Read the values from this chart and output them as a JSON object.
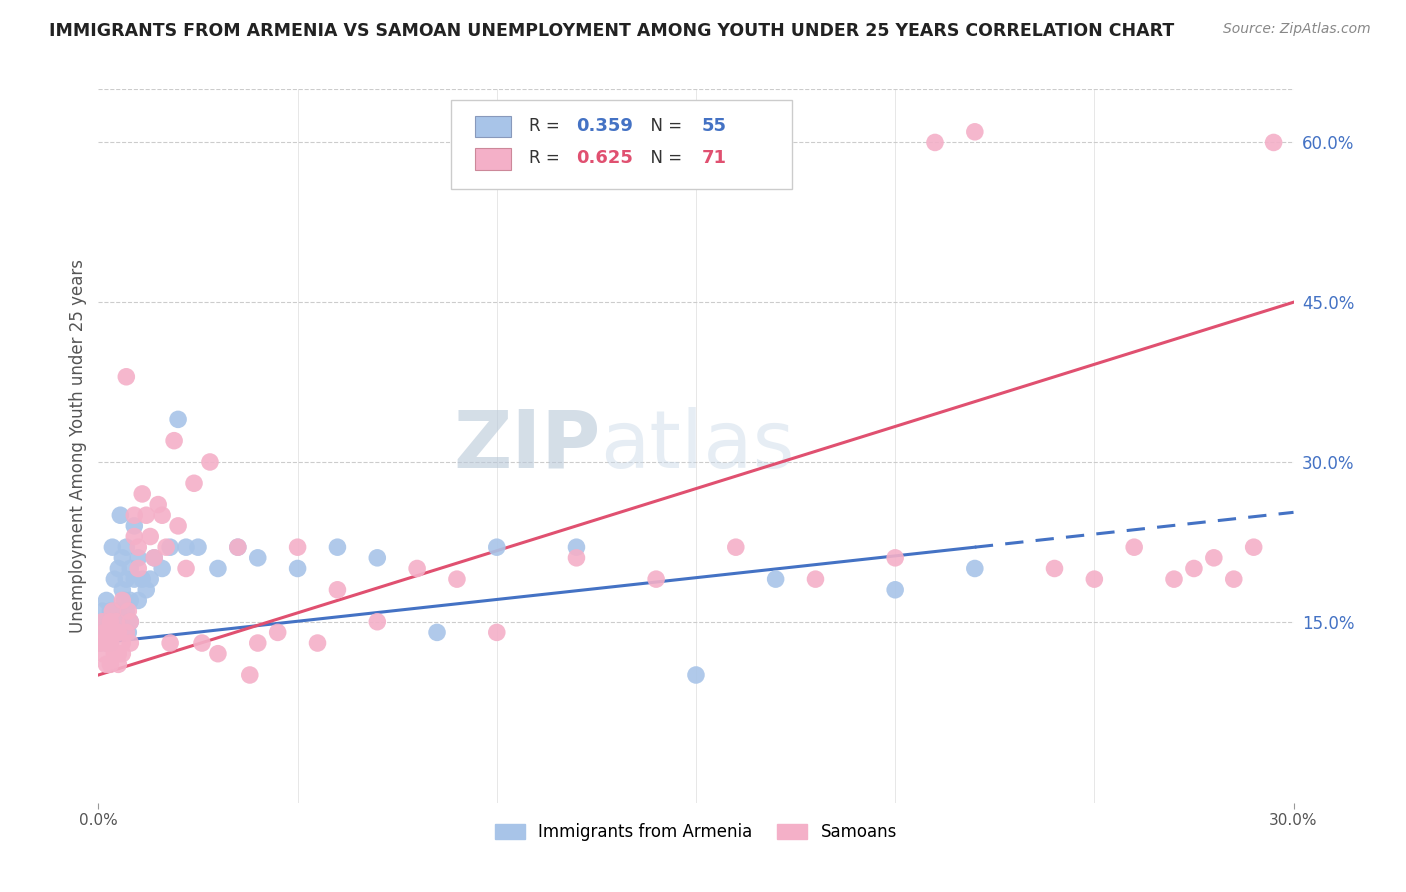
{
  "title": "IMMIGRANTS FROM ARMENIA VS SAMOAN UNEMPLOYMENT AMONG YOUTH UNDER 25 YEARS CORRELATION CHART",
  "source": "Source: ZipAtlas.com",
  "ylabel": "Unemployment Among Youth under 25 years",
  "legend_label1": "Immigrants from Armenia",
  "legend_label2": "Samoans",
  "r1": "0.359",
  "n1": "55",
  "r2": "0.625",
  "n2": "71",
  "color1": "#a8c4e8",
  "color2": "#f4b0c8",
  "trendline1_color": "#4472c4",
  "trendline2_color": "#e05070",
  "watermark_zip": "ZIP",
  "watermark_atlas": "atlas",
  "xmin": 0.0,
  "xmax": 0.3,
  "ymin": -0.02,
  "ymax": 0.65,
  "right_ytick_vals": [
    0.15,
    0.3,
    0.45,
    0.6
  ],
  "right_ytick_labels": [
    "15.0%",
    "30.0%",
    "45.0%",
    "60.0%"
  ],
  "armenia_x": [
    0.0005,
    0.001,
    0.001,
    0.0015,
    0.002,
    0.002,
    0.0025,
    0.003,
    0.003,
    0.003,
    0.0035,
    0.004,
    0.004,
    0.0045,
    0.005,
    0.005,
    0.005,
    0.0055,
    0.006,
    0.006,
    0.006,
    0.0065,
    0.007,
    0.007,
    0.007,
    0.0075,
    0.008,
    0.008,
    0.008,
    0.009,
    0.009,
    0.01,
    0.01,
    0.011,
    0.012,
    0.013,
    0.014,
    0.016,
    0.018,
    0.02,
    0.022,
    0.025,
    0.03,
    0.035,
    0.04,
    0.05,
    0.06,
    0.07,
    0.085,
    0.1,
    0.12,
    0.15,
    0.17,
    0.2,
    0.22
  ],
  "armenia_y": [
    0.13,
    0.16,
    0.14,
    0.15,
    0.13,
    0.17,
    0.14,
    0.15,
    0.13,
    0.16,
    0.22,
    0.14,
    0.19,
    0.16,
    0.2,
    0.16,
    0.14,
    0.25,
    0.18,
    0.15,
    0.21,
    0.17,
    0.22,
    0.19,
    0.16,
    0.14,
    0.2,
    0.17,
    0.15,
    0.19,
    0.24,
    0.21,
    0.17,
    0.19,
    0.18,
    0.19,
    0.21,
    0.2,
    0.22,
    0.34,
    0.22,
    0.22,
    0.2,
    0.22,
    0.21,
    0.2,
    0.22,
    0.21,
    0.14,
    0.22,
    0.22,
    0.1,
    0.19,
    0.18,
    0.2
  ],
  "samoan_x": [
    0.0005,
    0.001,
    0.001,
    0.0015,
    0.002,
    0.002,
    0.0025,
    0.003,
    0.003,
    0.003,
    0.0035,
    0.004,
    0.004,
    0.0045,
    0.005,
    0.005,
    0.005,
    0.006,
    0.006,
    0.006,
    0.007,
    0.007,
    0.0075,
    0.008,
    0.008,
    0.009,
    0.009,
    0.01,
    0.01,
    0.011,
    0.012,
    0.013,
    0.014,
    0.015,
    0.016,
    0.017,
    0.018,
    0.019,
    0.02,
    0.022,
    0.024,
    0.026,
    0.028,
    0.03,
    0.035,
    0.038,
    0.04,
    0.045,
    0.05,
    0.055,
    0.06,
    0.07,
    0.08,
    0.09,
    0.1,
    0.12,
    0.14,
    0.16,
    0.18,
    0.2,
    0.21,
    0.22,
    0.24,
    0.25,
    0.26,
    0.27,
    0.275,
    0.28,
    0.285,
    0.29,
    0.295
  ],
  "samoan_y": [
    0.13,
    0.15,
    0.12,
    0.14,
    0.13,
    0.11,
    0.14,
    0.15,
    0.11,
    0.13,
    0.16,
    0.14,
    0.12,
    0.15,
    0.14,
    0.12,
    0.11,
    0.17,
    0.13,
    0.12,
    0.38,
    0.14,
    0.16,
    0.15,
    0.13,
    0.25,
    0.23,
    0.22,
    0.2,
    0.27,
    0.25,
    0.23,
    0.21,
    0.26,
    0.25,
    0.22,
    0.13,
    0.32,
    0.24,
    0.2,
    0.28,
    0.13,
    0.3,
    0.12,
    0.22,
    0.1,
    0.13,
    0.14,
    0.22,
    0.13,
    0.18,
    0.15,
    0.2,
    0.19,
    0.14,
    0.21,
    0.19,
    0.22,
    0.19,
    0.21,
    0.6,
    0.61,
    0.2,
    0.19,
    0.22,
    0.19,
    0.2,
    0.21,
    0.19,
    0.22,
    0.6
  ]
}
